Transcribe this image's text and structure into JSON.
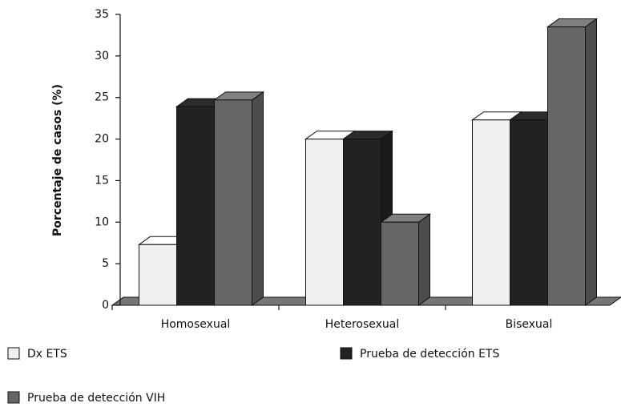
{
  "chart_data": {
    "type": "bar3d",
    "y_label": "Porcentaje de casos (%)",
    "categories": [
      "Homosexual",
      "Heterosexual",
      "Bisexual"
    ],
    "series": [
      {
        "name": "Dx ETS",
        "color": "#f0f0f0",
        "values": [
          7.3,
          20,
          22.3
        ]
      },
      {
        "name": "Prueba de detección ETS",
        "color": "#222222",
        "values": [
          23.9,
          20,
          22.3
        ]
      },
      {
        "name": "Prueba de detección VIH",
        "color": "#666666",
        "values": [
          24.7,
          10,
          33.5
        ]
      }
    ],
    "ylim": [
      0,
      35
    ],
    "yticks": [
      0,
      5,
      10,
      15,
      20,
      25,
      30,
      35
    ],
    "grid": false
  }
}
